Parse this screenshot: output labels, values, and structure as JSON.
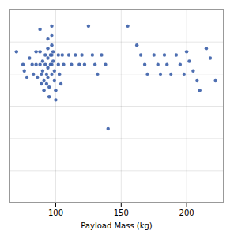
{
  "chart_data": {
    "type": "scatter",
    "xlabel": "Payload Mass (kg)",
    "x": [
      70,
      75,
      76,
      78,
      80,
      82,
      83,
      85,
      85,
      86,
      88,
      88,
      88,
      89,
      89,
      90,
      90,
      91,
      91,
      92,
      92,
      93,
      93,
      94,
      94,
      94,
      94,
      94,
      95,
      95,
      96,
      96,
      97,
      97,
      97,
      97,
      97,
      97,
      98,
      98,
      99,
      99,
      100,
      100,
      102,
      102,
      103,
      104,
      105,
      106,
      110,
      112,
      115,
      118,
      120,
      122,
      125,
      128,
      130,
      132,
      135,
      138,
      140,
      155,
      162,
      165,
      168,
      170,
      175,
      178,
      180,
      183,
      185,
      188,
      192,
      195,
      198,
      200,
      202,
      205,
      208,
      210,
      215,
      218,
      222
    ],
    "values": [
      770,
      730,
      710,
      690,
      750,
      730,
      700,
      770,
      730,
      690,
      840,
      770,
      730,
      700,
      670,
      740,
      710,
      680,
      650,
      760,
      730,
      700,
      670,
      810,
      780,
      750,
      720,
      690,
      660,
      630,
      760,
      730,
      850,
      820,
      790,
      760,
      730,
      700,
      770,
      740,
      710,
      680,
      650,
      620,
      760,
      730,
      700,
      670,
      760,
      730,
      760,
      730,
      760,
      730,
      760,
      730,
      850,
      760,
      730,
      700,
      760,
      730,
      530,
      850,
      790,
      760,
      730,
      700,
      760,
      730,
      700,
      760,
      730,
      700,
      760,
      730,
      700,
      770,
      740,
      710,
      680,
      650,
      780,
      750,
      680
    ],
    "color": "#3a5ea8",
    "xlim": [
      65,
      228
    ],
    "xticks": [
      100,
      150,
      200
    ],
    "ylim": [
      300,
      900
    ],
    "yticks": [
      400,
      500,
      600,
      700,
      800,
      900
    ],
    "grid": true,
    "tick_labels": "x"
  }
}
